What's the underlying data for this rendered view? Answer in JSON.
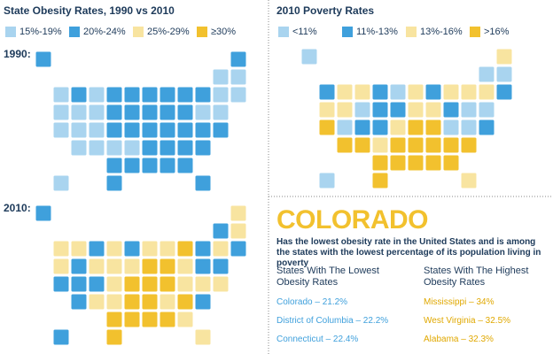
{
  "obesity": {
    "title": "State Obesity Rates, 1990 vs 2010",
    "legend": [
      {
        "label": "15%-19%",
        "color": "#a9d4ef"
      },
      {
        "label": "20%-24%",
        "color": "#3fa0dc"
      },
      {
        "label": "25%-29%",
        "color": "#f8e4a0"
      },
      {
        "label": "≥30%",
        "color": "#f2c12e"
      }
    ],
    "maps": [
      {
        "label": "1990:",
        "classes": [
          1,
          1,
          0,
          0,
          0,
          1,
          0,
          1,
          1,
          1,
          1,
          1,
          1,
          0,
          0,
          0,
          0,
          0,
          1,
          1,
          1,
          1,
          1,
          0,
          0,
          0,
          0,
          0,
          1,
          1,
          1,
          1,
          1,
          1,
          1,
          0,
          0,
          0,
          0,
          1,
          1,
          1,
          1,
          1,
          1,
          1,
          1,
          1,
          0,
          1,
          1
        ]
      },
      {
        "label": "2010:",
        "classes": [
          1,
          2,
          1,
          2,
          2,
          2,
          1,
          2,
          1,
          2,
          2,
          3,
          1,
          2,
          1,
          2,
          1,
          2,
          2,
          2,
          3,
          3,
          2,
          1,
          1,
          1,
          1,
          1,
          2,
          3,
          3,
          3,
          2,
          2,
          2,
          1,
          2,
          2,
          3,
          3,
          2,
          3,
          1,
          3,
          3,
          3,
          3,
          2,
          1,
          3,
          2
        ]
      }
    ]
  },
  "poverty": {
    "title": "2010 Poverty Rates",
    "legend": [
      {
        "label": "<11%",
        "color": "#a9d4ef"
      },
      {
        "label": "11%-13%",
        "color": "#3fa0dc"
      },
      {
        "label": "13%-16%",
        "color": "#f8e4a0"
      },
      {
        "label": ">16%",
        "color": "#f2c12e"
      }
    ],
    "classes": [
      0,
      2,
      0,
      0,
      1,
      2,
      2,
      1,
      0,
      2,
      1,
      2,
      2,
      2,
      1,
      2,
      2,
      0,
      1,
      1,
      2,
      2,
      1,
      0,
      0,
      3,
      0,
      1,
      1,
      2,
      3,
      3,
      0,
      0,
      1,
      3,
      3,
      2,
      3,
      3,
      3,
      3,
      3,
      3,
      3,
      3,
      3,
      3,
      0,
      3,
      2
    ]
  },
  "highlight": {
    "state": "COLORADO",
    "text": "Has the lowest obesity rate in the United States and is among the states with the lowest percentage of its population living in poverty",
    "lowest": {
      "heading": "States With The Lowest Obesity Rates",
      "items": [
        "Colorado – 21.2%",
        "District of Columbia – 22.2%",
        "Connecticut – 22.4%"
      ]
    },
    "highest": {
      "heading": "States With The Highest Obesity Rates",
      "items": [
        "Mississippi – 34%",
        "West Virginia – 32.5%",
        "Alabama – 32.3%"
      ]
    }
  }
}
